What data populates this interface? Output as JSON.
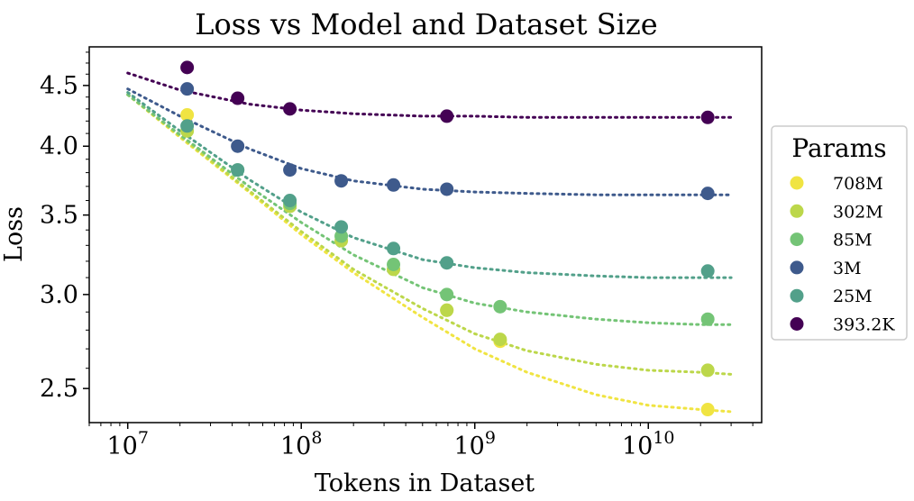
{
  "chart_data": {
    "type": "scatter",
    "title": "Loss vs Model and Dataset Size",
    "xlabel": "Tokens in Dataset",
    "ylabel": "Loss",
    "xscale": "log",
    "yscale": "log",
    "xlim": [
      6000000.0,
      45000000000.0
    ],
    "ylim": [
      2.34,
      4.85
    ],
    "xticks": [
      {
        "value": 10000000.0,
        "base": "10",
        "exp": "7"
      },
      {
        "value": 100000000.0,
        "base": "10",
        "exp": "8"
      },
      {
        "value": 1000000000.0,
        "base": "10",
        "exp": "9"
      },
      {
        "value": 10000000000.0,
        "base": "10",
        "exp": "10"
      }
    ],
    "yticks": [
      {
        "value": 2.5,
        "label": "2.5"
      },
      {
        "value": 3.0,
        "label": "3.0"
      },
      {
        "value": 3.5,
        "label": "3.5"
      },
      {
        "value": 4.0,
        "label": "4.0"
      },
      {
        "value": 4.5,
        "label": "4.5"
      }
    ],
    "grid": false,
    "legend": {
      "title": "Params",
      "placement": "right"
    },
    "series": [
      {
        "name": "708M",
        "color": "#f0e442",
        "points": [
          [
            22000000.0,
            4.25
          ],
          [
            690000000.0,
            2.91
          ],
          [
            1400000000.0,
            2.74
          ],
          [
            22000000000.0,
            2.4
          ]
        ],
        "fit_points": [
          [
            10000000.0,
            4.42
          ],
          [
            20000000.0,
            4.07
          ],
          [
            50000000.0,
            3.66
          ],
          [
            100000000.0,
            3.37
          ],
          [
            200000000.0,
            3.13
          ],
          [
            500000000.0,
            2.87
          ],
          [
            1000000000.0,
            2.7
          ],
          [
            2000000000.0,
            2.58
          ],
          [
            5000000000.0,
            2.47
          ],
          [
            10000000000.0,
            2.42
          ],
          [
            20000000000.0,
            2.4
          ],
          [
            30000000000.0,
            2.39
          ]
        ]
      },
      {
        "name": "302M",
        "color": "#bcd74a",
        "points": [
          [
            22000000.0,
            4.12
          ],
          [
            86000000.0,
            3.56
          ],
          [
            170000000.0,
            3.33
          ],
          [
            340000000.0,
            3.15
          ],
          [
            690000000.0,
            2.91
          ],
          [
            1400000000.0,
            2.75
          ],
          [
            22000000000.0,
            2.59
          ]
        ],
        "fit_points": [
          [
            10000000.0,
            4.42
          ],
          [
            20000000.0,
            4.08
          ],
          [
            50000000.0,
            3.67
          ],
          [
            100000000.0,
            3.39
          ],
          [
            200000000.0,
            3.15
          ],
          [
            500000000.0,
            2.92
          ],
          [
            1000000000.0,
            2.78
          ],
          [
            2000000000.0,
            2.69
          ],
          [
            5000000000.0,
            2.62
          ],
          [
            10000000000.0,
            2.59
          ],
          [
            20000000000.0,
            2.58
          ],
          [
            30000000000.0,
            2.57
          ]
        ]
      },
      {
        "name": "85M",
        "color": "#74c476",
        "points": [
          [
            43000000.0,
            3.82
          ],
          [
            86000000.0,
            3.58
          ],
          [
            170000000.0,
            3.36
          ],
          [
            340000000.0,
            3.18
          ],
          [
            690000000.0,
            3.0
          ],
          [
            1400000000.0,
            2.93
          ],
          [
            22000000000.0,
            2.86
          ]
        ],
        "fit_points": [
          [
            10000000.0,
            4.42
          ],
          [
            20000000.0,
            4.09
          ],
          [
            50000000.0,
            3.7
          ],
          [
            100000000.0,
            3.45
          ],
          [
            200000000.0,
            3.24
          ],
          [
            500000000.0,
            3.04
          ],
          [
            1000000000.0,
            2.95
          ],
          [
            2000000000.0,
            2.9
          ],
          [
            5000000000.0,
            2.86
          ],
          [
            10000000000.0,
            2.84
          ],
          [
            20000000000.0,
            2.83
          ],
          [
            30000000000.0,
            2.83
          ]
        ]
      },
      {
        "name": "3M",
        "color": "#3e5a8c",
        "points": [
          [
            22000000.0,
            4.47
          ],
          [
            43000000.0,
            4.0
          ],
          [
            86000000.0,
            3.82
          ],
          [
            170000000.0,
            3.74
          ],
          [
            340000000.0,
            3.71
          ],
          [
            690000000.0,
            3.68
          ],
          [
            22000000000.0,
            3.65
          ]
        ],
        "fit_points": [
          [
            10000000.0,
            4.47
          ],
          [
            20000000.0,
            4.24
          ],
          [
            50000000.0,
            3.98
          ],
          [
            100000000.0,
            3.83
          ],
          [
            200000000.0,
            3.74
          ],
          [
            500000000.0,
            3.68
          ],
          [
            1000000000.0,
            3.66
          ],
          [
            2000000000.0,
            3.65
          ],
          [
            5000000000.0,
            3.64
          ],
          [
            10000000000.0,
            3.64
          ],
          [
            20000000000.0,
            3.64
          ],
          [
            30000000000.0,
            3.64
          ]
        ]
      },
      {
        "name": "25M",
        "color": "#52a08a",
        "points": [
          [
            22000000.0,
            4.16
          ],
          [
            43000000.0,
            3.82
          ],
          [
            86000000.0,
            3.6
          ],
          [
            170000000.0,
            3.42
          ],
          [
            340000000.0,
            3.28
          ],
          [
            690000000.0,
            3.19
          ],
          [
            22000000000.0,
            3.14
          ]
        ],
        "fit_points": [
          [
            10000000.0,
            4.44
          ],
          [
            20000000.0,
            4.12
          ],
          [
            50000000.0,
            3.75
          ],
          [
            100000000.0,
            3.52
          ],
          [
            200000000.0,
            3.35
          ],
          [
            500000000.0,
            3.21
          ],
          [
            1000000000.0,
            3.16
          ],
          [
            2000000000.0,
            3.13
          ],
          [
            5000000000.0,
            3.11
          ],
          [
            10000000000.0,
            3.1
          ],
          [
            20000000000.0,
            3.1
          ],
          [
            30000000000.0,
            3.1
          ]
        ]
      },
      {
        "name": "393.2K",
        "color": "#440154",
        "points": [
          [
            22000000.0,
            4.66
          ],
          [
            43000000.0,
            4.39
          ],
          [
            86000000.0,
            4.3
          ],
          [
            690000000.0,
            4.24
          ],
          [
            22000000000.0,
            4.23
          ]
        ],
        "fit_points": [
          [
            10000000.0,
            4.61
          ],
          [
            20000000.0,
            4.46
          ],
          [
            50000000.0,
            4.34
          ],
          [
            100000000.0,
            4.29
          ],
          [
            200000000.0,
            4.26
          ],
          [
            500000000.0,
            4.24
          ],
          [
            1000000000.0,
            4.24
          ],
          [
            2000000000.0,
            4.23
          ],
          [
            5000000000.0,
            4.23
          ],
          [
            10000000000.0,
            4.23
          ],
          [
            20000000000.0,
            4.23
          ],
          [
            30000000000.0,
            4.23
          ]
        ]
      }
    ]
  }
}
